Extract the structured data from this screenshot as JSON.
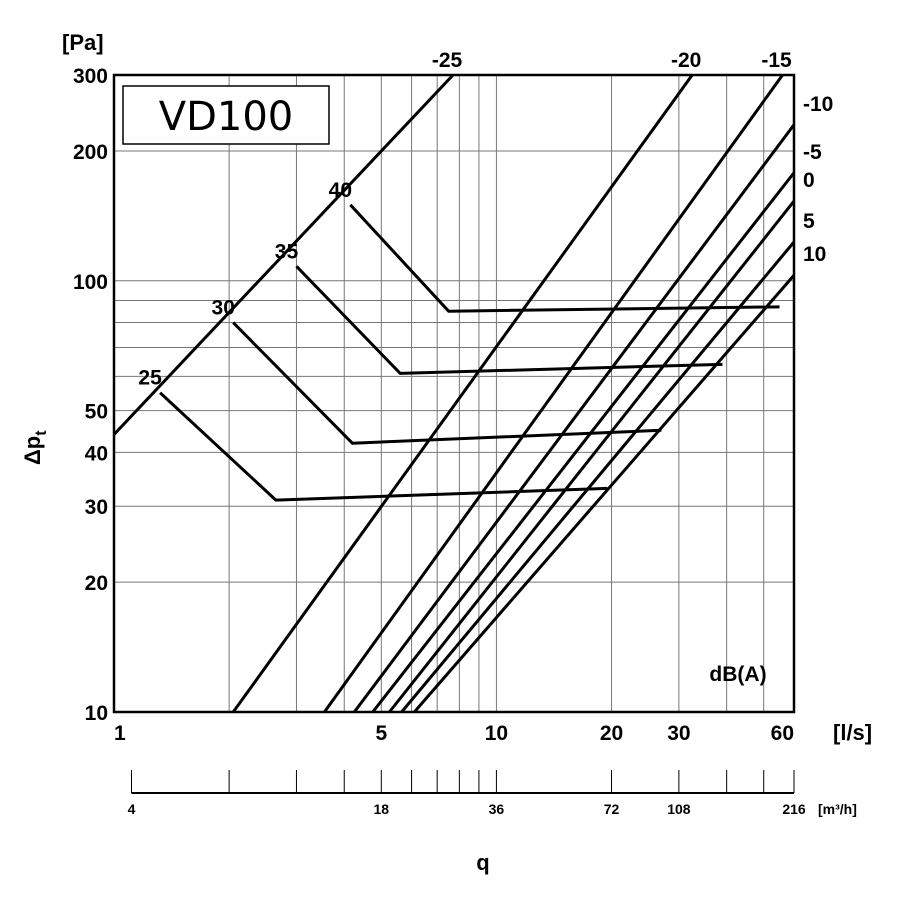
{
  "chart_data": {
    "type": "line",
    "title": "VD100",
    "xlabel": "q",
    "ylabel": "Δp",
    "ylabel_sub": "t",
    "x_unit": "[l/s]",
    "y_unit": "[Pa]",
    "x_scale": "log",
    "y_scale": "log",
    "xlim": [
      1,
      60
    ],
    "ylim": [
      10,
      300
    ],
    "grid": true,
    "x_ticks": [
      1,
      5,
      10,
      20,
      30,
      60
    ],
    "x_tick_labels": [
      "1",
      "5",
      "10",
      "20",
      "30",
      "60"
    ],
    "x_minor_grid": [
      2,
      3,
      4,
      6,
      7,
      8,
      9,
      40,
      50
    ],
    "y_ticks": [
      10,
      20,
      30,
      40,
      50,
      100,
      200,
      300
    ],
    "y_tick_labels": [
      "10",
      "20",
      "30",
      "40",
      "50",
      "100",
      "200",
      "300"
    ],
    "y_minor_grid": [
      60,
      70,
      80,
      90
    ],
    "secondary_x_axis": {
      "unit": "[m³/h]",
      "ticks": [
        4,
        18,
        36,
        72,
        108,
        216
      ],
      "tick_labels": [
        "4",
        "18",
        "36",
        "72",
        "108",
        "216"
      ],
      "minor_ticks": [
        7.2,
        10.8,
        14.4,
        21.6,
        25.2,
        28.8,
        32.4,
        144,
        180
      ]
    },
    "series_label": "dB(A)",
    "series": [
      {
        "name": "-25",
        "x": [
          1,
          7.7
        ],
        "y": [
          44,
          300
        ]
      },
      {
        "name": "-20",
        "x": [
          2.05,
          32.5
        ],
        "y": [
          10,
          300
        ]
      },
      {
        "name": "-15",
        "x": [
          3.55,
          56
        ],
        "y": [
          10,
          300
        ]
      },
      {
        "name": "-10",
        "x": [
          4.25,
          60
        ],
        "y": [
          10,
          230
        ]
      },
      {
        "name": "-5",
        "x": [
          4.75,
          60
        ],
        "y": [
          10,
          178
        ]
      },
      {
        "name": "0",
        "x": [
          5.25,
          60
        ],
        "y": [
          10,
          153
        ]
      },
      {
        "name": "5",
        "x": [
          5.65,
          60
        ],
        "y": [
          10,
          123
        ]
      },
      {
        "name": "10",
        "x": [
          6.1,
          60
        ],
        "y": [
          10,
          103
        ]
      }
    ],
    "settings": [
      {
        "name": "25",
        "x": [
          1.32,
          2.65,
          19.5
        ],
        "y": [
          55,
          31,
          33
        ]
      },
      {
        "name": "30",
        "x": [
          2.05,
          4.2,
          27
        ],
        "y": [
          80,
          42,
          45
        ]
      },
      {
        "name": "35",
        "x": [
          3.0,
          5.6,
          39
        ],
        "y": [
          108,
          61,
          64
        ]
      },
      {
        "name": "40",
        "x": [
          4.15,
          7.5,
          55
        ],
        "y": [
          150,
          85,
          87
        ]
      }
    ]
  }
}
